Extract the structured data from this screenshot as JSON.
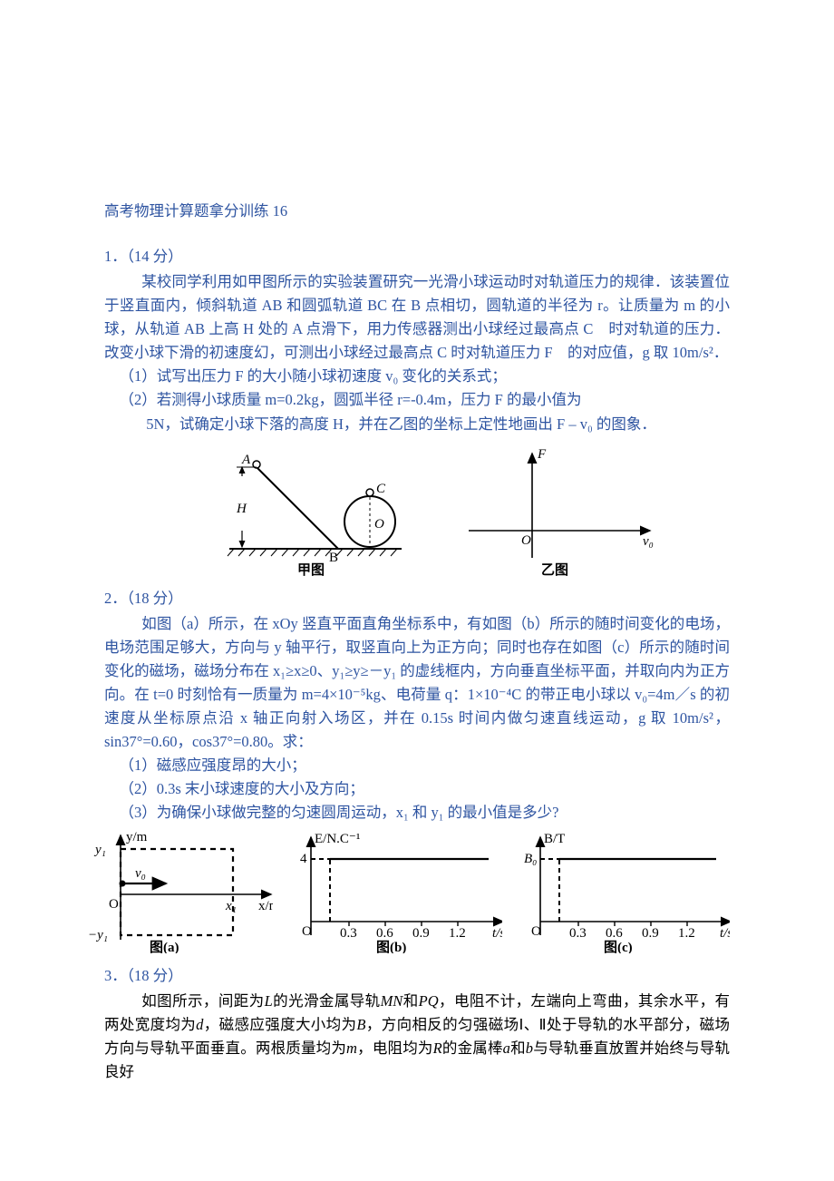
{
  "title": "高考物理计算题拿分训练 16",
  "q1": {
    "num": "1．（14 分）",
    "p1": "某校同学利用如甲图所示的实验装置研究一光滑小球运动时对轨道压力的规律．该装置位于竖直面内，倾斜轨道 AB 和圆弧轨道 BC 在 B 点相切，圆轨道的半径为 r。让质量为 m 的小球，从轨道 AB 上高 H 处的 A 点滑下，用力传感器测出小球经过最高点 C　时对轨道的压力．改变小球下滑的初速度幻，可测出小球经过最高点 C 时对轨道压力 F　的对应值，g 取 10m/s²．",
    "s1": "（1）试写出压力 F 的大小随小球初速度 v₀ 变化的关系式；",
    "s2a": "（2）若测得小球质量 m=0.2kg，圆弧半径 r=-0.4m，压力 F 的最小值为",
    "s2b": "5N，试确定小球下落的高度 H，并在乙图的坐标上定性地画出 F – v₀ 的图象．",
    "fig1": {
      "caption": "甲图",
      "labels": {
        "A": "A",
        "B": "B",
        "C": "C",
        "O": "O",
        "H": "H"
      },
      "colors": {
        "stroke": "#000000",
        "bg": "#ffffff"
      }
    },
    "fig2": {
      "caption": "乙图",
      "xlabel": "v₀",
      "ylabel": "F",
      "origin": "O",
      "colors": {
        "stroke": "#000000",
        "bg": "#ffffff"
      }
    }
  },
  "q2": {
    "num": "2．（18 分）",
    "p1": "如图（a）所示，在 xOy 竖直平面直角坐标系中，有如图（b）所示的随时间变化的电场，电场范围足够大，方向与 y 轴平行，取竖直向上为正方向；同时也存在如图（c）所示的随时间变化的磁场，磁场分布在 x₁≥x≥0、y₁≥y≥－y₁ 的虚线框内，方向垂直坐标平面，并取向内为正方向。在 t=0 时刻恰有一质量为 m=4×10⁻⁵kg、电荷量 q：1×10⁻⁴C 的带正电小球以 v₀=4m／s 的初速度从坐标原点沿 x 轴正向射入场区，并在 0.15s 时间内做匀速直线运动，g 取 10m/s²，sin37°=0.60，cos37°=0.80。求：",
    "s1": "（1）磁感应强度昂的大小；",
    "s2": "（2）0.3s 末小球速度的大小及方向；",
    "s3": "（3）为确保小球做完整的匀速圆周运动，x₁ 和 y₁ 的最小值是多少?",
    "figA": {
      "caption": "图(a)",
      "xlabel": "x/m",
      "ylabel": "y/m",
      "labels": {
        "O": "O",
        "x1": "x₁",
        "y1": "y₁",
        "my1": "−y₁",
        "v0": "v₀"
      },
      "colors": {
        "stroke": "#000000",
        "dash": "#000000",
        "bg": "#ffffff"
      }
    },
    "figB": {
      "caption": "图(b)",
      "xlabel": "t/s",
      "ylabel": "E/N.C⁻¹",
      "xticks": [
        "0.3",
        "0.6",
        "0.9",
        "1.2"
      ],
      "yval": "4",
      "step_at": 0.15,
      "colors": {
        "stroke": "#000000",
        "bg": "#ffffff"
      }
    },
    "figC": {
      "caption": "图(c)",
      "xlabel": "t/s",
      "ylabel": "B/T",
      "xticks": [
        "0.3",
        "0.6",
        "0.9",
        "1.2"
      ],
      "yval": "B₀",
      "step_at": 0.15,
      "colors": {
        "stroke": "#000000",
        "bg": "#ffffff"
      }
    }
  },
  "q3": {
    "num": "3．（18 分）",
    "p1_segments": [
      {
        "t": "如图所示，间距为"
      },
      {
        "t": "L",
        "it": true
      },
      {
        "t": "的光滑金属导轨"
      },
      {
        "t": "MN",
        "it": true
      },
      {
        "t": "和"
      },
      {
        "t": "PQ",
        "it": true
      },
      {
        "t": "，电阻不计，左端向上弯曲，其余水平，有两处宽度均为"
      },
      {
        "t": "d",
        "it": true
      },
      {
        "t": "，磁感应强度大小均为"
      },
      {
        "t": "B",
        "it": true
      },
      {
        "t": "，方向相反的匀强磁场Ⅰ、Ⅱ处于导轨的水平部分，磁场方向与导轨平面垂直。两根质量均为"
      },
      {
        "t": "m",
        "it": true
      },
      {
        "t": "，电阻均为"
      },
      {
        "t": "R",
        "it": true
      },
      {
        "t": "的金属棒"
      },
      {
        "t": "a",
        "it": true
      },
      {
        "t": "和"
      },
      {
        "t": "b",
        "it": true
      },
      {
        "t": "与导轨垂直放置并始终与导轨良好"
      }
    ]
  }
}
